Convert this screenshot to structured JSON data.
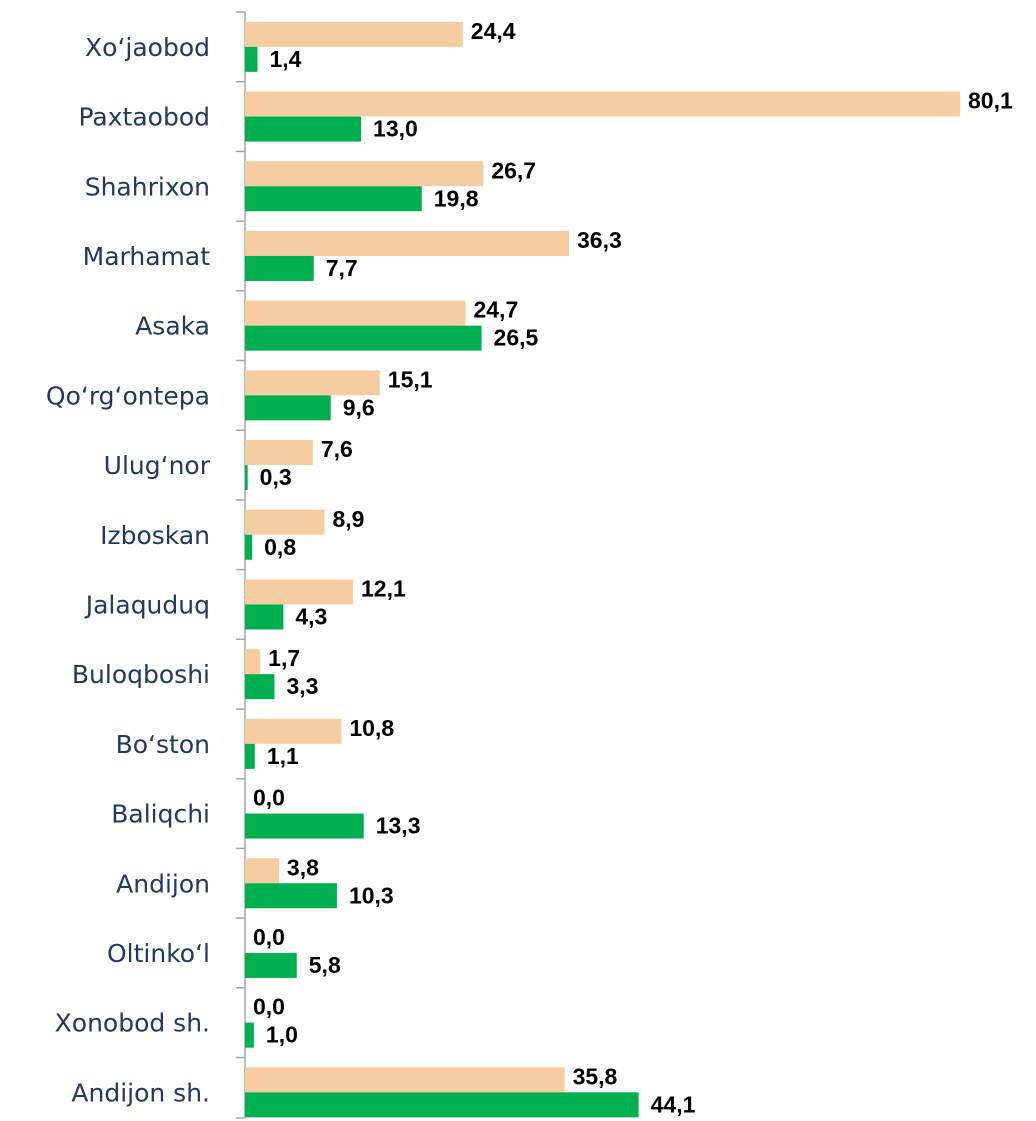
{
  "chart_data": {
    "type": "bar",
    "orientation": "horizontal",
    "categories": [
      "Xoʻjaobod",
      "Paxtaobod",
      "Shahrixon",
      "Marhamat",
      "Asaka",
      "Qoʻrgʻontepa",
      "Ulugʻnor",
      "Izboskan",
      "Jalaquduq",
      "Buloqboshi",
      "Boʻston",
      "Baliqchi",
      "Andijon",
      "Oltinkoʻl",
      "Xonobod sh.",
      "Andijon sh."
    ],
    "series": [
      {
        "color": "#f5cda0",
        "values": [
          24.4,
          80.1,
          26.7,
          36.3,
          24.7,
          15.1,
          7.6,
          8.9,
          12.1,
          1.7,
          10.8,
          0.0,
          3.8,
          0.0,
          0.0,
          35.8
        ],
        "value_labels": [
          "24,4",
          "80,1",
          "26,7",
          "36,3",
          "24,7",
          "15,1",
          "7,6",
          "8,9",
          "12,1",
          "1,7",
          "10,8",
          "0,0",
          "3,8",
          "0,0",
          "0,0",
          "35,8"
        ]
      },
      {
        "color": "#00b050",
        "values": [
          1.4,
          13.0,
          19.8,
          7.7,
          26.5,
          9.6,
          0.3,
          0.8,
          4.3,
          3.3,
          1.1,
          13.3,
          10.3,
          5.8,
          1.0,
          44.1
        ],
        "value_labels": [
          "1,4",
          "13,0",
          "19,8",
          "7,7",
          "26,5",
          "9,6",
          "0,3",
          "0,8",
          "4,3",
          "3,3",
          "1,1",
          "13,3",
          "10,3",
          "5,8",
          "1,0",
          "44,1"
        ]
      }
    ]
  }
}
